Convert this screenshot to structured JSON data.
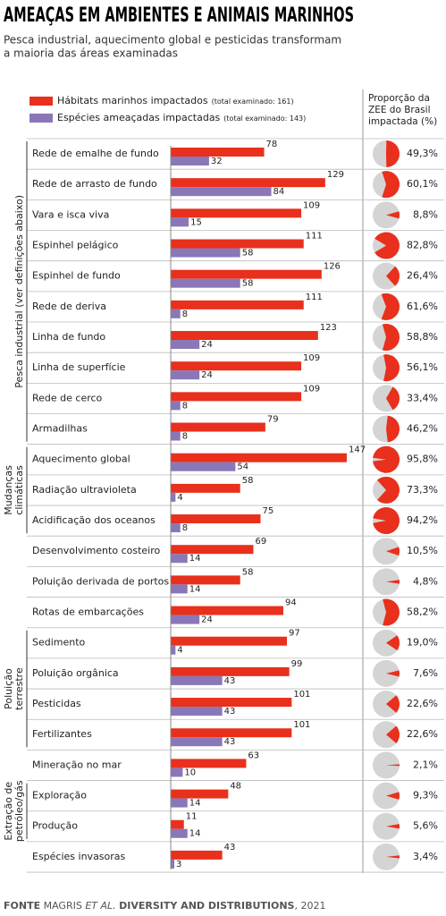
{
  "chart_data": [
    {
      "type": "bar",
      "title": "AMEAÇAS EM AMBIENTES E ANIMAIS MARINHOS",
      "subtitle": [
        "Pesca industrial, aquecimento global e pesticidas transformam",
        "a maioria das áreas examinadas"
      ],
      "categories": [
        "Rede de emalhe de fundo",
        "Rede de arrasto de fundo",
        "Vara e isca viva",
        "Espinhel pelágico",
        "Espinhel de fundo",
        "Rede de deriva",
        "Linha de fundo",
        "Linha de superfície",
        "Rede de cerco",
        "Armadilhas",
        "Aquecimento global",
        "Radiação ultravioleta",
        "Acidificação dos oceanos",
        "Desenvolvimento costeiro",
        "Poluição derivada de portos",
        "Rotas de embarcações",
        "Sedimento",
        "Poluição orgânica",
        "Pesticidas",
        "Fertilizantes",
        "Mineração no mar",
        "Exploração",
        "Produção",
        "Espécies invasoras"
      ],
      "groups": [
        {
          "label": [
            "Pesca industrial (ver definições abaixo)"
          ],
          "first": 0,
          "last": 9
        },
        {
          "label": [
            "Mudanças",
            "climáticas"
          ],
          "first": 10,
          "last": 12
        },
        {
          "label": [
            "Poluição",
            "terrestre"
          ],
          "first": 16,
          "last": 19
        },
        {
          "label": [
            "Extração de",
            "petróleo/gás"
          ],
          "first": 21,
          "last": 22
        }
      ],
      "series": [
        {
          "name": "Hábitats marinhos impactados",
          "note": "(total examinado: 161)",
          "color": "#e8301c",
          "values": [
            78,
            129,
            109,
            111,
            126,
            111,
            123,
            109,
            109,
            79,
            147,
            58,
            75,
            69,
            58,
            94,
            97,
            99,
            101,
            101,
            63,
            48,
            11,
            43
          ]
        },
        {
          "name": "Espécies ameaçadas impactadas",
          "note": "(total examinado: 143)",
          "color": "#8a77b7",
          "values": [
            32,
            84,
            15,
            58,
            58,
            8,
            24,
            24,
            8,
            8,
            54,
            4,
            8,
            14,
            14,
            24,
            4,
            43,
            43,
            43,
            10,
            14,
            14,
            3
          ]
        }
      ],
      "source": [
        "FONTE",
        "MAGRIS",
        "ET AL.",
        "DIVERSITY AND DISTRIBUTIONS",
        ", 2021"
      ]
    },
    {
      "type": "pie",
      "title": [
        "Proporção da",
        "ZEE do Brasil",
        "impactada (%)"
      ],
      "color": "#e8301c",
      "background": "#d4d4d4",
      "values": [
        49.3,
        60.1,
        8.8,
        82.8,
        26.4,
        61.6,
        58.8,
        56.1,
        33.4,
        46.2,
        95.8,
        73.3,
        94.2,
        10.5,
        4.8,
        58.2,
        19.0,
        7.6,
        22.6,
        22.6,
        2.1,
        9.3,
        5.6,
        3.4
      ],
      "value_labels": [
        "49,3%",
        "60,1%",
        "8,8%",
        "82,8%",
        "26,4%",
        "61,6%",
        "58,8%",
        "56,1%",
        "33,4%",
        "46,2%",
        "95,8%",
        "73,3%",
        "94,2%",
        "10,5%",
        "4,8%",
        "58,2%",
        "19,0%",
        "7,6%",
        "22,6%",
        "22,6%",
        "2,1%",
        "9,3%",
        "5,6%",
        "3,4%"
      ]
    }
  ]
}
